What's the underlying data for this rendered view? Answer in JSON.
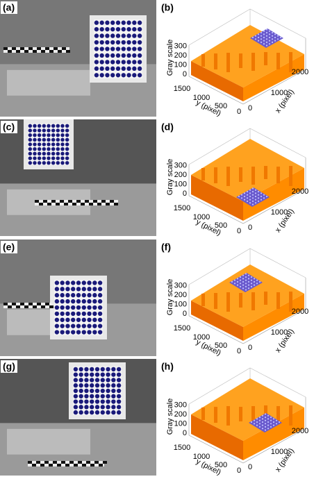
{
  "photos": [
    {
      "label": "(a)"
    },
    {
      "label": "(c)"
    },
    {
      "label": "(e)"
    },
    {
      "label": "(g)"
    }
  ],
  "plots": [
    {
      "label": "(b)",
      "z_label": "Gray scale",
      "y_label": "y (pixel)",
      "x_label": "x (pixel)",
      "z_ticks": [
        "0",
        "100",
        "200",
        "300"
      ],
      "y_ticks": [
        "1500",
        "1000",
        "500",
        "0"
      ],
      "x_ticks": [
        "0",
        "1000",
        "2000"
      ]
    },
    {
      "label": "(d)",
      "z_label": "Gray scale",
      "y_label": "y (pixel)",
      "x_label": "x (pixel)",
      "z_ticks": [
        "0",
        "100",
        "200",
        "300"
      ],
      "y_ticks": [
        "1500",
        "1000",
        "500",
        "0"
      ],
      "x_ticks": [
        "0",
        "1000",
        "2000"
      ]
    },
    {
      "label": "(f)",
      "z_label": "Gray scale",
      "y_label": "y (pixel)",
      "x_label": "x (pixel)",
      "z_ticks": [
        "0",
        "100",
        "200",
        "300"
      ],
      "y_ticks": [
        "1500",
        "1000",
        "500",
        "0"
      ],
      "x_ticks": [
        "0",
        "1000",
        "2000"
      ]
    },
    {
      "label": "(h)",
      "z_label": "Gray scale",
      "y_label": "y (pixel)",
      "x_label": "x (pixel)",
      "z_ticks": [
        "0",
        "100",
        "200",
        "300"
      ],
      "y_ticks": [
        "1500",
        "1000",
        "500",
        "0"
      ],
      "x_ticks": [
        "0",
        "1000",
        "2000"
      ]
    }
  ]
}
